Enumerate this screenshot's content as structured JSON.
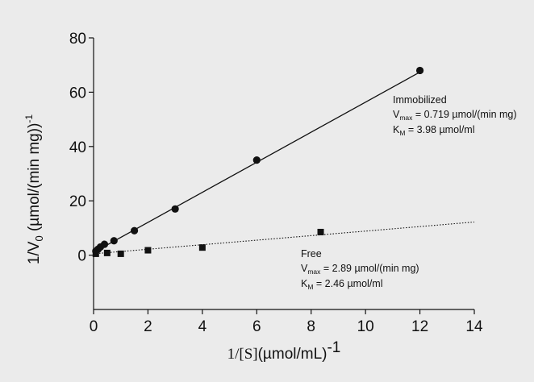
{
  "chart_data": {
    "type": "scatter",
    "xlabel_math": "1/[S]",
    "xlabel_unit": "(µmol/mL)",
    "xlabel_sup": "-1",
    "ylabel_main": "1/V",
    "ylabel_sub": "0",
    "ylabel_unit": " (µmol/(min mg))",
    "ylabel_sup": "-1",
    "xlim": [
      0,
      14
    ],
    "ylim": [
      -20,
      80
    ],
    "xticks": [
      0,
      2,
      4,
      6,
      8,
      10,
      12,
      14
    ],
    "yticks": [
      0,
      20,
      40,
      60,
      80
    ],
    "grid": false,
    "series": [
      {
        "name": "Immobilized",
        "marker": "circle",
        "line_style": "solid",
        "x": [
          0.083,
          0.167,
          0.25,
          0.4,
          0.75,
          1.5,
          3.0,
          6.0,
          12.0
        ],
        "y": [
          1.5,
          2.2,
          3.0,
          4.0,
          5.3,
          9.0,
          17.0,
          35.0,
          68.0
        ],
        "fit": {
          "x": [
            0,
            12
          ],
          "y": [
            1.0,
            67.4
          ]
        },
        "annotation": {
          "name": "Immobilized",
          "vmax_prefix": "V",
          "vmax_sub": "max",
          "vmax_text": " = 0.719 µmol/(min mg)",
          "km_prefix": "K",
          "km_sub": "M",
          "km_text": " = 3.98 µmol/ml"
        }
      },
      {
        "name": "Free",
        "marker": "square",
        "line_style": "dotted",
        "x": [
          0.083,
          0.5,
          1.0,
          2.0,
          4.0,
          8.35
        ],
        "y": [
          0.5,
          0.8,
          0.5,
          1.8,
          2.8,
          8.5
        ],
        "fit": {
          "x": [
            0,
            14
          ],
          "y": [
            0.5,
            12.2
          ]
        },
        "annotation": {
          "name": "Free",
          "vmax_prefix": "V",
          "vmax_sub": "max",
          "vmax_text": " = 2.89 µmol/(min mg)",
          "km_prefix": "K",
          "km_sub": "M",
          "km_text": " = 2.46 µmol/ml"
        }
      }
    ]
  }
}
